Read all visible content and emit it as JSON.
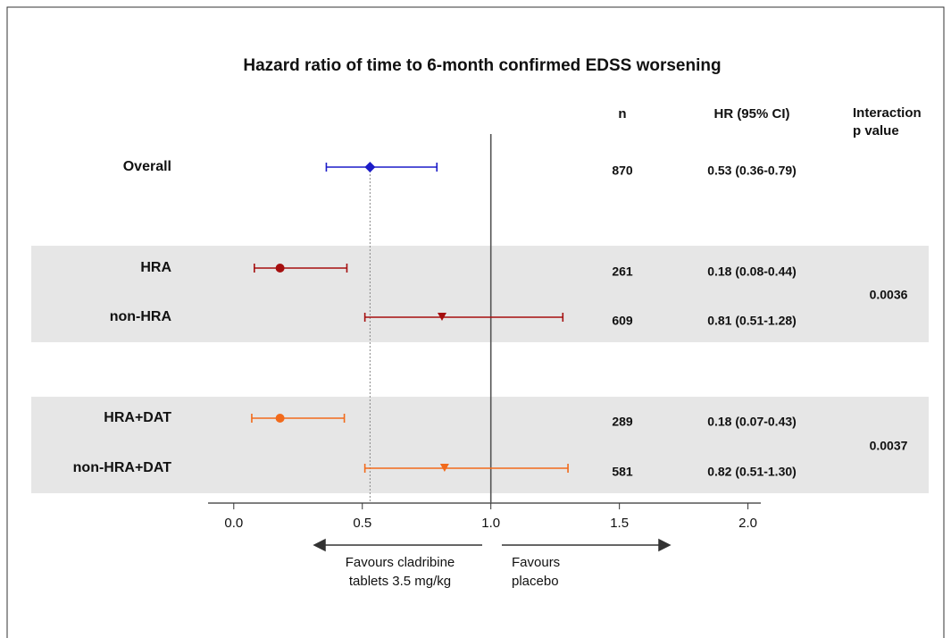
{
  "chart_data": {
    "type": "forest",
    "title": "Hazard ratio of time to 6-month confirmed EDSS worsening",
    "n_header": "n",
    "hr_header": "HR (95% CI)",
    "p_header": [
      "Interaction",
      "p value"
    ],
    "xlim": [
      -0.1,
      2.05
    ],
    "xticks": [
      {
        "value": 0,
        "label": "0.0"
      },
      0.5,
      {
        "value": 1,
        "label": "1.0"
      },
      1.5,
      {
        "value": 2,
        "label": "2.0"
      }
    ],
    "reference": 1,
    "annotations": {
      "left": [
        "Favours cladribine",
        "tablets 3.5 mg/kg"
      ],
      "right": [
        "Favours",
        "placebo"
      ]
    },
    "groups": [
      {
        "rows": [
          {
            "label": "Overall",
            "n": 870,
            "value": 0.53,
            "lower": 0.36,
            "upper": 0.79,
            "value_label": "0.53 (0.36-0.79)",
            "marker": "diamond",
            "color": "#1c1cc8"
          }
        ]
      },
      {
        "rows": [
          {
            "label": "HRA",
            "n": 261,
            "value": 0.18,
            "lower": 0.08,
            "upper": 0.44,
            "value_label": "0.18 (0.08-0.44)",
            "marker": "circle",
            "color": "#a50f0f"
          },
          {
            "label": "non-HRA",
            "n": 609,
            "value": 0.81,
            "lower": 0.51,
            "upper": 1.28,
            "value_label": "0.81 (0.51-1.28)",
            "marker": "triangle-down",
            "color": "#a50f0f"
          }
        ],
        "p_value": 0.0036
      },
      {
        "rows": [
          {
            "label": "HRA+DAT",
            "n": 289,
            "value": 0.18,
            "lower": 0.07,
            "upper": 0.43,
            "value_label": "0.18 (0.07-0.43)",
            "marker": "circle",
            "color": "#f26a1b"
          },
          {
            "label": "non-HRA+DAT",
            "n": 581,
            "value": 0.82,
            "lower": 0.51,
            "upper": 1.3,
            "value_label": "0.82 (0.51-1.30)",
            "marker": "triangle-down",
            "color": "#f26a1b"
          }
        ],
        "p_value": 0.0037
      }
    ]
  }
}
